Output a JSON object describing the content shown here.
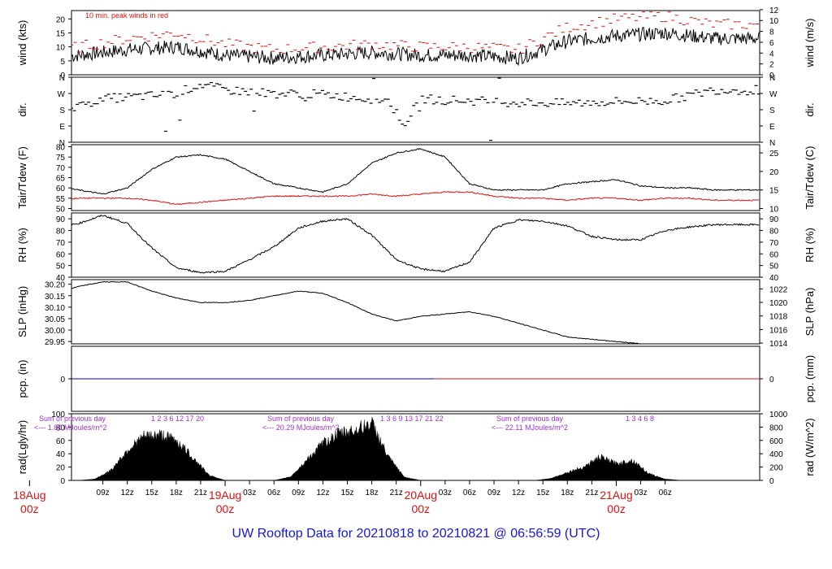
{
  "title": "UW Rooftop Data for 20210818  to  20210821 @ 06:56:59  (UTC)",
  "colors": {
    "title": "#1515e0",
    "peak": "#e01010",
    "dew": "#e01010",
    "pcp_current": "#e01010",
    "pcp_prev": "#0000c0",
    "day_label": "#e01010",
    "rad_note": "#a030d0",
    "data": "#000000"
  },
  "chart_data": [
    {
      "id": "wind",
      "type": "line",
      "ylabel": "wind (kts)",
      "ylabel_right": "wind (m/s)",
      "annotation": "10 min. peak winds in red",
      "ylim": [
        0,
        23
      ],
      "yticks": [
        0,
        5,
        10,
        15,
        20
      ],
      "right_ticks": [
        "0",
        "2",
        "4",
        "6",
        "8",
        "10",
        "12"
      ],
      "x_hours": [
        0,
        6,
        12,
        18,
        24,
        30,
        36,
        42,
        48,
        54,
        60,
        66,
        72,
        78,
        84
      ],
      "series": [
        {
          "values": [
            5,
            7,
            9,
            10,
            7,
            6,
            7,
            8,
            7,
            7,
            6,
            12,
            14,
            15,
            13
          ]
        },
        {
          "values": [
            8,
            10,
            13,
            15,
            11,
            9,
            10,
            11,
            10,
            10,
            9,
            17,
            20,
            21,
            18
          ]
        }
      ]
    },
    {
      "id": "dir",
      "type": "scatter",
      "ylabel": "dir.",
      "ylabel_right": "dir.",
      "yticks": [
        "N",
        "E",
        "S",
        "W",
        "N"
      ],
      "ylim": [
        0,
        360
      ],
      "x_hours": [
        0,
        3,
        6,
        9,
        12,
        16,
        18,
        21,
        24,
        30,
        36,
        42,
        44,
        46,
        48,
        54,
        60,
        66,
        72,
        78,
        84
      ],
      "values": [
        60,
        90,
        200,
        240,
        250,
        260,
        270,
        320,
        290,
        270,
        265,
        240,
        230,
        100,
        240,
        230,
        220,
        215,
        225,
        230,
        290
      ]
    },
    {
      "id": "temp",
      "type": "line",
      "ylabel": "Tair/Tdew (F)",
      "ylabel_right": "Tair/Tdew (C)",
      "ylim": [
        49,
        81
      ],
      "yticks": [
        50,
        55,
        60,
        65,
        70,
        75,
        80
      ],
      "right_ticks": [
        "10",
        "15",
        "20",
        "25"
      ],
      "x_hours": [
        0,
        3,
        6,
        9,
        12,
        15,
        18,
        21,
        24,
        27,
        30,
        33,
        36,
        39,
        42,
        45,
        48,
        51,
        54,
        57,
        60,
        63,
        66,
        69,
        72,
        75,
        78,
        81,
        84
      ],
      "series": [
        {
          "values": [
            65,
            61,
            59,
            57,
            60,
            69,
            75,
            76,
            74,
            68,
            62,
            60,
            58,
            62,
            72,
            77,
            79,
            75,
            62,
            59,
            59,
            59,
            62,
            63,
            64,
            61,
            60,
            60,
            59
          ]
        },
        {
          "values": [
            55,
            54,
            55,
            55,
            55,
            54,
            52,
            53,
            54,
            55,
            56,
            56,
            56,
            56,
            57,
            56,
            57,
            58,
            58,
            56,
            55,
            55,
            54,
            55,
            55,
            54,
            55,
            55,
            54
          ]
        }
      ]
    },
    {
      "id": "rh",
      "type": "line",
      "ylabel": "RH (%)",
      "ylabel_right": "RH (%)",
      "ylim": [
        40,
        95
      ],
      "yticks": [
        40,
        50,
        60,
        70,
        80,
        90
      ],
      "x_hours": [
        0,
        3,
        6,
        9,
        12,
        15,
        18,
        21,
        24,
        27,
        30,
        33,
        36,
        39,
        42,
        45,
        48,
        51,
        54,
        57,
        60,
        63,
        66,
        69,
        72,
        75,
        78,
        81,
        84
      ],
      "values": [
        70,
        82,
        86,
        93,
        86,
        65,
        48,
        44,
        45,
        55,
        66,
        82,
        88,
        90,
        76,
        55,
        47,
        45,
        53,
        82,
        89,
        88,
        84,
        75,
        72,
        72,
        80,
        83,
        85
      ]
    },
    {
      "id": "slp",
      "type": "line",
      "ylabel": "SLP (inHg)",
      "ylabel_right": "SLP (hPa)",
      "ylim": [
        29.94,
        30.22
      ],
      "yticks": [
        "29.95",
        "30.00",
        "30.05",
        "30.10",
        "30.15",
        "30.20"
      ],
      "right_ticks": [
        "1014",
        "1016",
        "1018",
        "1020",
        "1022"
      ],
      "x_hours": [
        0,
        3,
        6,
        9,
        12,
        15,
        18,
        21,
        24,
        27,
        30,
        33,
        36,
        39,
        42,
        45,
        48,
        51,
        54,
        57,
        60,
        63,
        66,
        69,
        72,
        75,
        78,
        81,
        84
      ],
      "values": [
        30.14,
        30.16,
        30.19,
        30.21,
        30.21,
        30.17,
        30.14,
        30.12,
        30.12,
        30.13,
        30.15,
        30.17,
        30.16,
        30.12,
        30.07,
        30.04,
        30.06,
        30.07,
        30.08,
        30.06,
        30.03,
        30.0,
        29.97,
        29.96,
        29.95,
        29.94,
        29.93,
        29.93,
        29.93
      ]
    },
    {
      "id": "pcp",
      "type": "line",
      "ylabel": "pcp. (in)",
      "ylabel_right": "pcp. (mm)",
      "ylim": [
        -1,
        1
      ],
      "yticks": [
        "0"
      ],
      "right_ticks": [
        "0"
      ],
      "x_hours": [
        0,
        49.7,
        84
      ],
      "values": [
        0,
        0,
        0
      ]
    },
    {
      "id": "rad",
      "type": "area",
      "ylabel": "rad(Lgly/hr)",
      "ylabel_right": "rad (W/m^2)",
      "ylim": [
        0,
        100
      ],
      "yticks": [
        0,
        20,
        40,
        60,
        80,
        100
      ],
      "right_ticks": [
        "0",
        "200",
        "400",
        "600",
        "800",
        "1000"
      ],
      "annotations": [
        {
          "label": "Sum of previous day",
          "value": "<--- 1.80 MJoules/m^2",
          "hour_ticks": [
            "1",
            "2",
            "3",
            "6",
            "12",
            "17",
            "20"
          ]
        },
        {
          "label": "Sum of previous day",
          "value": "<--- 20.29 MJoules/m^2",
          "hour_ticks": [
            "1",
            "3",
            "6",
            "9",
            "13",
            "17",
            "21",
            "22"
          ]
        },
        {
          "label": "Sum of previous day",
          "value": "<--- 22.11 MJoules/m^2",
          "hour_ticks": [
            "1",
            "3",
            "4",
            "6",
            "8"
          ]
        }
      ],
      "x_hours": [
        0,
        4,
        6,
        8,
        10,
        12,
        14,
        16,
        18,
        20,
        22,
        24,
        27,
        30,
        32,
        34,
        36,
        38,
        40,
        42,
        44,
        46,
        48,
        50,
        54,
        58,
        60,
        62,
        64,
        66,
        68,
        70,
        72,
        74,
        76,
        78,
        80,
        84
      ],
      "values": [
        0,
        0,
        0,
        2,
        15,
        45,
        65,
        68,
        60,
        35,
        8,
        0,
        0,
        0,
        5,
        30,
        55,
        70,
        75,
        85,
        35,
        5,
        0,
        0,
        0,
        0,
        0,
        0,
        3,
        12,
        20,
        35,
        25,
        30,
        10,
        2,
        0,
        0
      ]
    }
  ],
  "x_axis": {
    "tick_labels": [
      "09z",
      "12z",
      "15z",
      "18z",
      "21z",
      "03z",
      "06z",
      "09z",
      "12z",
      "15z",
      "18z",
      "21z",
      "03z",
      "06z",
      "09z",
      "12z",
      "15z",
      "18z",
      "21z",
      "03z",
      "06z"
    ],
    "day_labels": [
      {
        "day": "18Aug",
        "hour": "00z"
      },
      {
        "day": "19Aug",
        "hour": "00z"
      },
      {
        "day": "20Aug",
        "hour": "00z"
      },
      {
        "day": "21Aug",
        "hour": "00z"
      }
    ]
  }
}
